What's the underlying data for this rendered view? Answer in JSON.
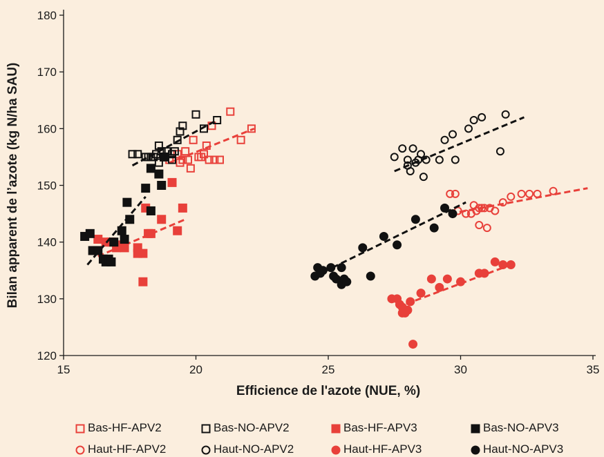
{
  "chart_data": {
    "type": "scatter",
    "xlabel": "Efficience de l'azote (NUE, %)",
    "ylabel": "Bilan apparent de l’azote (kg N/ha SAU)",
    "xlim": [
      15,
      35
    ],
    "ylim": [
      120,
      180
    ],
    "xticks": [
      15,
      20,
      25,
      30,
      35
    ],
    "yticks": [
      120,
      130,
      140,
      150,
      160,
      170,
      180
    ],
    "grid": false,
    "legend_position": "bottom",
    "colors": {
      "red": "#e8403a",
      "black": "#111111"
    },
    "series": [
      {
        "name": "Bas-HF-APV2",
        "marker": "square",
        "fill": "open",
        "color": "#e8403a",
        "x": [
          21.3,
          22.1,
          20.6,
          20.4,
          20.7,
          19.9,
          20.1,
          19.8,
          19.6,
          19.5,
          19.3,
          19.0,
          19.7,
          19.4,
          20.2,
          20.3,
          20.5,
          20.9,
          21.7
        ],
        "y": [
          163,
          160,
          160.5,
          157,
          154.5,
          158,
          155,
          153,
          156,
          154.5,
          155.5,
          154.5,
          154.5,
          154,
          155,
          155.5,
          154.5,
          154.5,
          158
        ],
        "trend": [
          [
            19,
            154
          ],
          [
            22.2,
            160
          ]
        ]
      },
      {
        "name": "Bas-NO-APV2",
        "marker": "square",
        "fill": "open",
        "color": "#111111",
        "x": [
          17.6,
          17.8,
          18.1,
          18.3,
          18.5,
          18.6,
          18.7,
          18.9,
          19.1,
          19.3,
          19.4,
          19.5,
          19.2,
          20.0,
          20.3,
          20.8,
          18.2,
          18.4,
          18.6,
          19.1
        ],
        "y": [
          155.5,
          155.5,
          155,
          155,
          155.5,
          157,
          156,
          156,
          154.5,
          158,
          159.5,
          160.5,
          156,
          162.5,
          160,
          161.5,
          155,
          155,
          154,
          155.5
        ],
        "trend": [
          [
            17.6,
            153.5
          ],
          [
            20.8,
            161.5
          ]
        ]
      },
      {
        "name": "Bas-HF-APV3",
        "marker": "square",
        "fill": "filled",
        "color": "#e8403a",
        "x": [
          16.3,
          16.6,
          16.8,
          17.0,
          17.3,
          17.8,
          17.8,
          18.0,
          18.0,
          18.2,
          18.3,
          18.7,
          19.1,
          19.3,
          19.5,
          18.1,
          17.1
        ],
        "y": [
          140.5,
          140,
          140,
          139,
          139,
          139,
          138,
          138,
          133,
          141.5,
          141.5,
          144,
          150.5,
          142,
          146,
          146,
          139.5
        ],
        "trend": [
          [
            16.3,
            137.5
          ],
          [
            19.6,
            144
          ]
        ]
      },
      {
        "name": "Bas-NO-APV3",
        "marker": "square",
        "fill": "filled",
        "color": "#111111",
        "x": [
          15.8,
          16.0,
          16.1,
          16.3,
          16.5,
          16.6,
          16.7,
          16.8,
          16.9,
          17.2,
          17.3,
          17.5,
          17.4,
          18.1,
          18.3,
          18.3,
          18.6,
          18.7,
          18.8
        ],
        "y": [
          141,
          141.5,
          138.5,
          138.5,
          137,
          136.5,
          137,
          136.5,
          140,
          142,
          140.5,
          144,
          147,
          149.5,
          145.5,
          153,
          152,
          150,
          155
        ],
        "trend": [
          [
            15.9,
            136
          ],
          [
            18.1,
            148
          ]
        ]
      },
      {
        "name": "Haut-HF-APV2",
        "marker": "circle",
        "fill": "open",
        "color": "#e8403a",
        "x": [
          29.6,
          29.8,
          29.9,
          30.2,
          30.4,
          30.5,
          30.6,
          30.7,
          30.8,
          30.9,
          31.0,
          31.1,
          31.3,
          31.6,
          31.9,
          32.3,
          32.6,
          32.9,
          33.5,
          30.7
        ],
        "y": [
          148.5,
          148.5,
          145.5,
          145,
          145,
          146.5,
          145.5,
          143,
          146,
          146,
          142.5,
          146,
          145.5,
          147,
          148,
          148.5,
          148.5,
          148.5,
          149,
          146
        ],
        "trend": [
          [
            29.6,
            145
          ],
          [
            34.8,
            149.5
          ]
        ]
      },
      {
        "name": "Haut-NO-APV2",
        "marker": "circle",
        "fill": "open",
        "color": "#111111",
        "x": [
          27.5,
          27.8,
          28.0,
          28.1,
          28.2,
          28.3,
          28.4,
          28.5,
          28.6,
          28.7,
          29.2,
          29.4,
          29.8,
          29.7,
          30.3,
          30.5,
          30.8,
          31.5,
          31.7,
          28.0
        ],
        "y": [
          155,
          156.5,
          154.5,
          152.5,
          156.5,
          154,
          154.5,
          155.5,
          151.5,
          154.5,
          154.5,
          158,
          154.5,
          159,
          160,
          161.5,
          162,
          156,
          162.5,
          153.5
        ],
        "trend": [
          [
            27.5,
            152.5
          ],
          [
            32.4,
            162
          ]
        ]
      },
      {
        "name": "Haut-HF-APV3",
        "marker": "circle",
        "fill": "filled",
        "color": "#e8403a",
        "x": [
          27.4,
          27.6,
          27.7,
          27.8,
          27.9,
          28.0,
          28.1,
          28.5,
          28.9,
          29.2,
          29.5,
          30.0,
          30.7,
          30.9,
          31.3,
          31.6,
          31.9,
          28.2,
          27.8
        ],
        "y": [
          130,
          130,
          129,
          128.5,
          127.5,
          128,
          129.5,
          131,
          133.5,
          132,
          133.5,
          133,
          134.5,
          134.5,
          136.5,
          136,
          136,
          122,
          127.5
        ],
        "trend": [
          [
            27.6,
            128.5
          ],
          [
            31.9,
            136
          ]
        ]
      },
      {
        "name": "Haut-NO-APV3",
        "marker": "circle",
        "fill": "filled",
        "color": "#111111",
        "x": [
          24.5,
          24.6,
          24.8,
          25.1,
          25.2,
          25.3,
          25.5,
          25.6,
          25.7,
          26.3,
          26.6,
          27.1,
          27.6,
          28.3,
          29.0,
          29.4,
          29.7,
          25.5,
          24.7
        ],
        "y": [
          134,
          135.5,
          135,
          135.5,
          134,
          133.5,
          132.5,
          133.5,
          133,
          139,
          134,
          141,
          139.5,
          144,
          142.5,
          146,
          145,
          135.5,
          134.5
        ],
        "trend": [
          [
            24.5,
            134
          ],
          [
            30.2,
            147
          ]
        ]
      }
    ]
  }
}
